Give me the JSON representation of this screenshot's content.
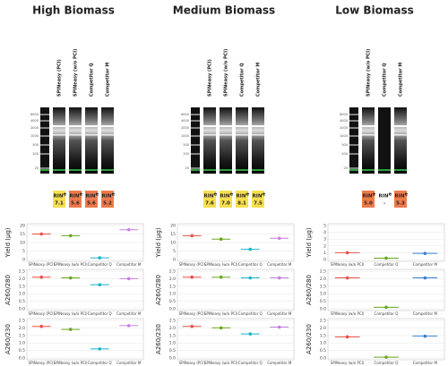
{
  "panels": [
    {
      "title": "High Biomass",
      "lanes": [
        "SPINeasy (PCI)",
        "SPINeasy (w/o PCI)",
        "Competitor Q",
        "Competitor M"
      ],
      "ladder": [
        "6000",
        "4000",
        "2000",
        "1000",
        "500",
        "200",
        "25"
      ],
      "rin_label": "RIN",
      "rin_sup": "e",
      "rin": [
        "7.1",
        "5.6",
        "5.6",
        "5.2"
      ],
      "rin_colors": [
        "#f7df4f",
        "#f07a4a",
        "#f07a4a",
        "#f07a4a"
      ]
    },
    {
      "title": "Medium Biomass",
      "lanes": [
        "SPINeasy (PCI)",
        "SPINeasy (w/o PCI)",
        "Competitor Q",
        "Competitor M"
      ],
      "ladder": [
        "6000",
        "4000",
        "2000",
        "1000",
        "500",
        "200",
        "25"
      ],
      "rin_label": "RIN",
      "rin_sup": "e",
      "rin": [
        "7.6",
        "7.0",
        "8.1",
        "7.5"
      ],
      "rin_colors": [
        "#f7df4f",
        "#f7df4f",
        "#f7df4f",
        "#f7df4f"
      ]
    },
    {
      "title": "Low Biomass",
      "lanes": [
        "SPINeasy (w/o PCI)",
        "Competitor Q",
        "Competitor M"
      ],
      "ladder": [
        "6000",
        "4000",
        "2000",
        "1000",
        "500",
        "200",
        "25"
      ],
      "rin_label": "RIN",
      "rin_sup": "e",
      "rin": [
        "5.0",
        "-",
        "5.3"
      ],
      "rin_colors": [
        "#f07a4a",
        null,
        "#f07a4a"
      ]
    }
  ],
  "chart_data": [
    {
      "type": "dot",
      "y_label": "Yield (µg)",
      "categories": [
        "SPINeasy (PCI)",
        "SPINeasy (w/o PCI)",
        "Competitor Q",
        "Competitor M"
      ],
      "values": [
        15,
        14,
        1,
        17.5
      ],
      "colors": [
        "#e8504a",
        "#6aa820",
        "#19b5c9",
        "#c77fe0"
      ],
      "ylim": [
        0,
        20
      ],
      "yticks": [
        0,
        5,
        10,
        15,
        20
      ]
    },
    {
      "type": "dot",
      "y_label": "A260/280",
      "categories": [
        "SPINeasy (PCI)",
        "SPINeasy (w/o PCI)",
        "Competitor Q",
        "Competitor M"
      ],
      "values": [
        2.1,
        2.05,
        1.6,
        2.0
      ],
      "colors": [
        "#e8504a",
        "#6aa820",
        "#19b5c9",
        "#c77fe0"
      ],
      "ylim": [
        0,
        2.5
      ],
      "yticks": [
        {
          "value": 0,
          "label": "0.0"
        },
        0.5,
        {
          "value": 1,
          "label": "1.0"
        },
        1.5,
        {
          "value": 2,
          "label": "2.0"
        },
        2.5
      ]
    },
    {
      "type": "dot",
      "y_label": "A260/230",
      "categories": [
        "SPINeasy (PCI)",
        "SPINeasy (w/o PCI)",
        "Competitor Q",
        "Competitor M"
      ],
      "values": [
        2.1,
        1.9,
        0.6,
        2.15
      ],
      "colors": [
        "#e8504a",
        "#6aa820",
        "#19b5c9",
        "#c77fe0"
      ],
      "ylim": [
        0,
        2.5
      ],
      "yticks": [
        {
          "value": 0,
          "label": "0.0"
        },
        0.5,
        {
          "value": 1,
          "label": "1.0"
        },
        1.5,
        {
          "value": 2,
          "label": "2.0"
        },
        2.5
      ]
    },
    {
      "type": "dot",
      "y_label": "Yield (µg)",
      "categories": [
        "SPINeasy (PCI)",
        "SPINeasy (w/o PCI)",
        "Competitor Q",
        "Competitor M"
      ],
      "values": [
        14,
        12,
        6,
        12.5
      ],
      "colors": [
        "#e8504a",
        "#6aa820",
        "#19b5c9",
        "#c77fe0"
      ],
      "ylim": [
        0,
        20
      ],
      "yticks": [
        0,
        5,
        10,
        15,
        20
      ]
    },
    {
      "type": "dot",
      "y_label": "A260/280",
      "categories": [
        "SPINeasy (PCI)",
        "SPINeasy (w/o PCI)",
        "Competitor Q",
        "Competitor M"
      ],
      "values": [
        2.1,
        2.1,
        2.05,
        2.05
      ],
      "colors": [
        "#e8504a",
        "#6aa820",
        "#19b5c9",
        "#c77fe0"
      ],
      "ylim": [
        0,
        2.5
      ],
      "yticks": [
        {
          "value": 0,
          "label": "0.0"
        },
        0.5,
        {
          "value": 1,
          "label": "1.0"
        },
        1.5,
        {
          "value": 2,
          "label": "2.0"
        },
        2.5
      ]
    },
    {
      "type": "dot",
      "y_label": "A260/230",
      "categories": [
        "SPINeasy (PCI)",
        "SPINeasy (w/o PCI)",
        "Competitor Q",
        "Competitor M"
      ],
      "values": [
        2.1,
        2.0,
        1.6,
        2.05
      ],
      "colors": [
        "#e8504a",
        "#6aa820",
        "#19b5c9",
        "#c77fe0"
      ],
      "ylim": [
        0,
        2.5
      ],
      "yticks": [
        {
          "value": 0,
          "label": "0.0"
        },
        0.5,
        {
          "value": 1,
          "label": "1.0"
        },
        1.5,
        {
          "value": 2,
          "label": "2.0"
        },
        2.5
      ]
    },
    {
      "type": "dot",
      "y_label": "Yield (µg)",
      "categories": [
        "SPINeasy (w/o PCI)",
        "Competitor Q",
        "Competitor M"
      ],
      "values": [
        1,
        0.2,
        0.9
      ],
      "colors": [
        "#e8504a",
        "#6aa820",
        "#3b7fd0"
      ],
      "ylim": [
        0,
        5
      ],
      "yticks": [
        0,
        1,
        2,
        3,
        4,
        5
      ]
    },
    {
      "type": "dot",
      "y_label": "A260/280",
      "categories": [
        "SPINeasy (w/o PCI)",
        "Competitor Q",
        "Competitor M"
      ],
      "values": [
        2.05,
        0.1,
        2.05
      ],
      "colors": [
        "#e8504a",
        "#6aa820",
        "#3b7fd0"
      ],
      "ylim": [
        0,
        2.5
      ],
      "yticks": [
        {
          "value": 0,
          "label": "0.0"
        },
        0.5,
        {
          "value": 1,
          "label": "1.0"
        },
        1.5,
        {
          "value": 2,
          "label": "2.0"
        },
        2.5
      ]
    },
    {
      "type": "dot",
      "y_label": "A260/230",
      "categories": [
        "SPINeasy (w/o PCI)",
        "Competitor Q",
        "Competitor M"
      ],
      "values": [
        1.4,
        0.05,
        1.45
      ],
      "colors": [
        "#e8504a",
        "#6aa820",
        "#3b7fd0"
      ],
      "ylim": [
        0,
        2.5
      ],
      "yticks": [
        {
          "value": 0,
          "label": "0.0"
        },
        0.5,
        {
          "value": 1,
          "label": "1.0"
        },
        1.5,
        {
          "value": 2,
          "label": "2.0"
        },
        2.5
      ]
    }
  ]
}
